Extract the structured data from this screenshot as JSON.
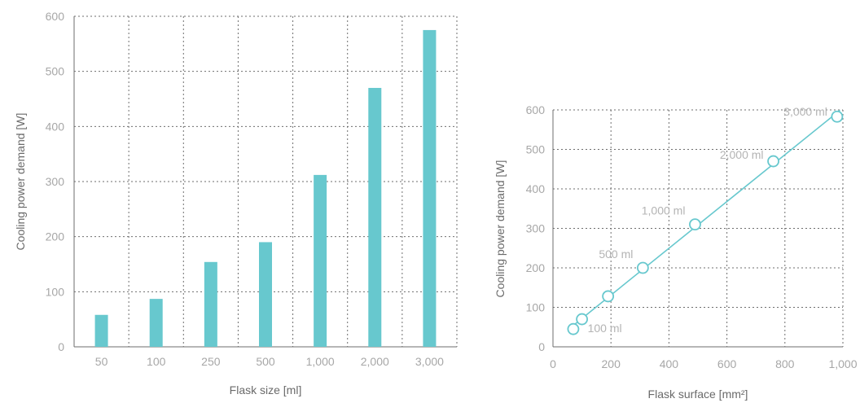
{
  "chart_data": [
    {
      "type": "bar",
      "categories": [
        "50",
        "100",
        "250",
        "500",
        "1,000",
        "2,000",
        "3,000"
      ],
      "values": [
        58,
        87,
        154,
        190,
        312,
        470,
        575
      ],
      "xlabel": "Flask size [ml]",
      "ylabel": "Cooling power demand [W]",
      "ylim": [
        0,
        600
      ],
      "yticks": [
        "0",
        "100",
        "200",
        "300",
        "400",
        "500",
        "600"
      ],
      "grid": true,
      "color": "#67c8ce"
    },
    {
      "type": "line",
      "x": [
        70,
        100,
        190,
        310,
        490,
        760,
        980
      ],
      "y": [
        45,
        70,
        128,
        200,
        310,
        470,
        583
      ],
      "point_labels": [
        "",
        "100 ml",
        "",
        "500 ml",
        "1,000 ml",
        "2,000 ml",
        "3,000 ml"
      ],
      "xlabel": "Flask surface [mm²]",
      "ylabel": "Cooling power demand [W]",
      "xlim": [
        0,
        1000
      ],
      "ylim": [
        0,
        600
      ],
      "xticks": [
        "0",
        "200",
        "400",
        "600",
        "800",
        "1,000"
      ],
      "yticks": [
        "0",
        "100",
        "200",
        "300",
        "400",
        "500",
        "600"
      ],
      "grid": true,
      "color": "#67c8ce"
    }
  ]
}
